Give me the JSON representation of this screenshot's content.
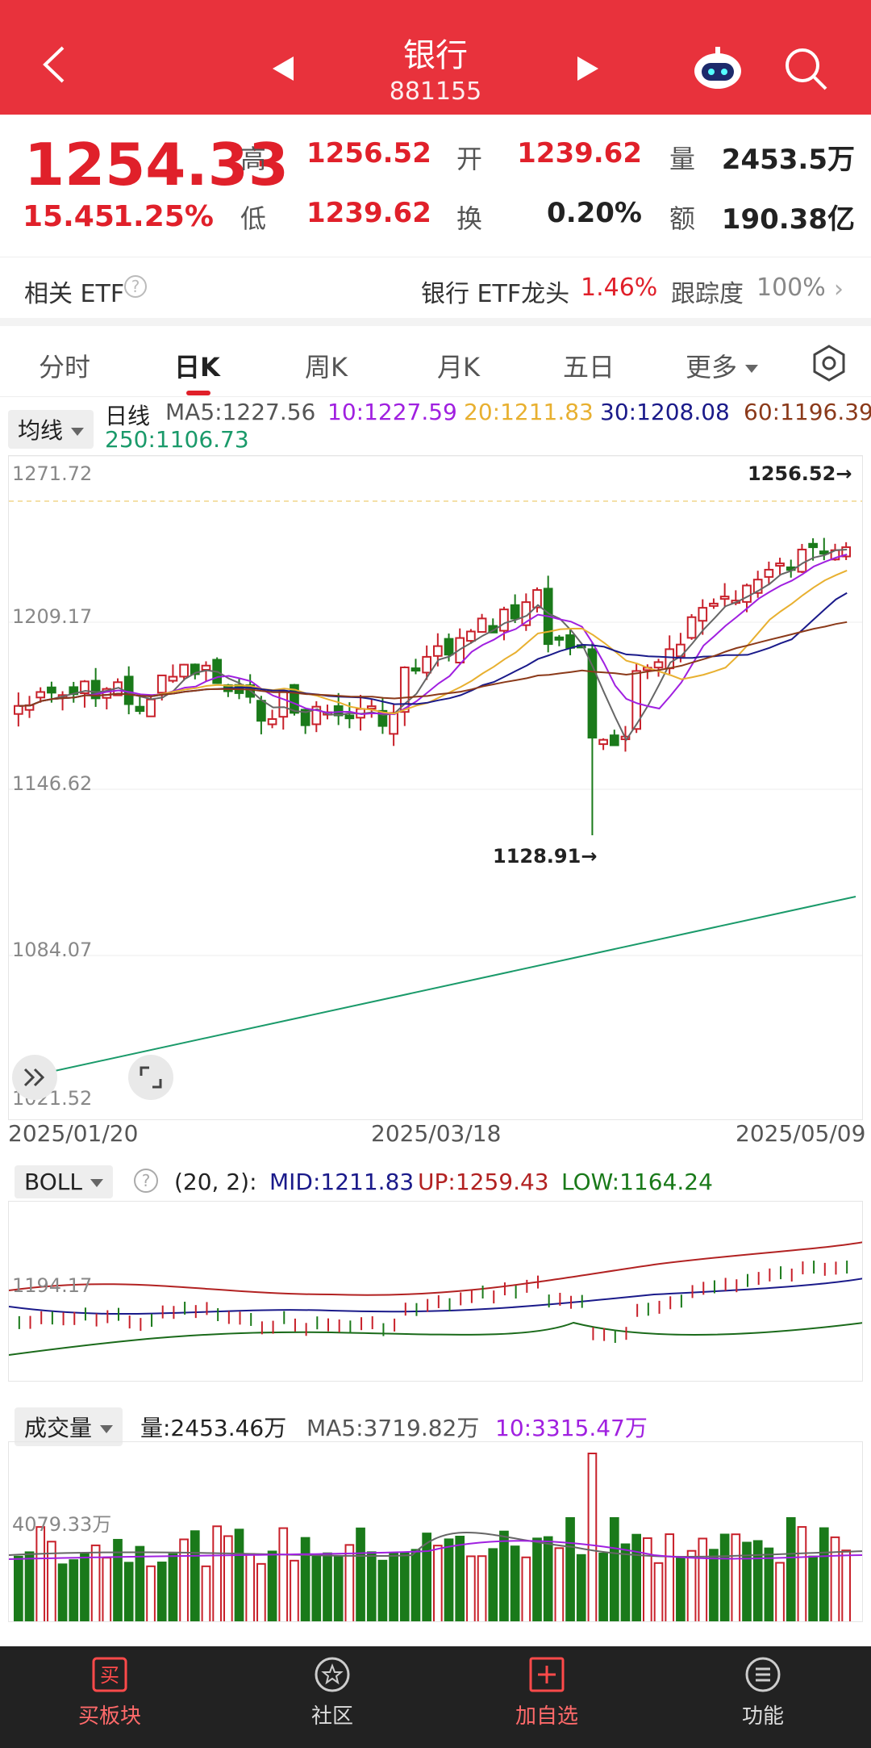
{
  "header": {
    "title": "银行",
    "code": "881155",
    "back_icon": "back-arrow-icon",
    "colors": {
      "bg": "#e8323c"
    }
  },
  "quote": {
    "price": "1254.33",
    "change": "15.45",
    "change_pct": "1.25%",
    "high_label": "高",
    "high": "1256.52",
    "low_label": "低",
    "low": "1239.62",
    "open_label": "开",
    "open": "1239.62",
    "turnover_label": "换",
    "turnover": "0.20%",
    "volume_label": "量",
    "volume": "2453.5万",
    "amount_label": "额",
    "amount": "190.38亿"
  },
  "etf": {
    "label": "相关 ETF",
    "help": "?",
    "name": "银行 ETF龙头",
    "pct": "1.46%",
    "track_label": "跟踪度",
    "track": "100%",
    "chevron": "›"
  },
  "tabs": [
    "分时",
    "日K",
    "周K",
    "月K",
    "五日",
    "更多"
  ],
  "active_tab": "日K",
  "ma_legend": {
    "select": "均线",
    "title": "日线",
    "ma5": "MA5:1227.56",
    "ma10": "10:1227.59",
    "ma20": "20:1211.83",
    "ma30": "30:1208.08",
    "ma60": "60:1196.39",
    "ma250": "250:1106.73"
  },
  "kline": {
    "y_labels": [
      "1271.72",
      "1209.17",
      "1146.62",
      "1084.07",
      "1021.52"
    ],
    "ymax": 1271.72,
    "ymin": 1021.52,
    "high_mark": "1256.52→",
    "low_mark": "1128.91→",
    "dates": [
      "2025/01/20",
      "2025/03/18",
      "2025/05/09"
    ]
  },
  "boll": {
    "select": "BOLL",
    "help": "?",
    "params": "(20, 2):",
    "mid": "MID:1211.83",
    "up": "UP:1259.43",
    "low": "LOW:1164.24",
    "ylabel": "1194.17"
  },
  "volume": {
    "select": "成交量",
    "vol": "量:2453.46万",
    "ma5": "MA5:3719.82万",
    "ma10": "10:3315.47万",
    "ylabel": "4079.33万"
  },
  "nav": [
    {
      "label": "买板块",
      "icon": "buy-icon"
    },
    {
      "label": "社区",
      "icon": "community-icon"
    },
    {
      "label": "加自选",
      "icon": "add-watchlist-icon"
    },
    {
      "label": "功能",
      "icon": "menu-icon"
    }
  ],
  "chart_data": {
    "type": "candlestick",
    "ylim": [
      1021.52,
      1271.72
    ],
    "series": [
      {
        "name": "MA5",
        "color": "#666666"
      },
      {
        "name": "10",
        "color": "#a020e0"
      },
      {
        "name": "20",
        "color": "#e8b030"
      },
      {
        "name": "30",
        "color": "#1a1a8a"
      },
      {
        "name": "60",
        "color": "#8b3a1a"
      },
      {
        "name": "250",
        "color": "#1a9a6a"
      }
    ]
  }
}
